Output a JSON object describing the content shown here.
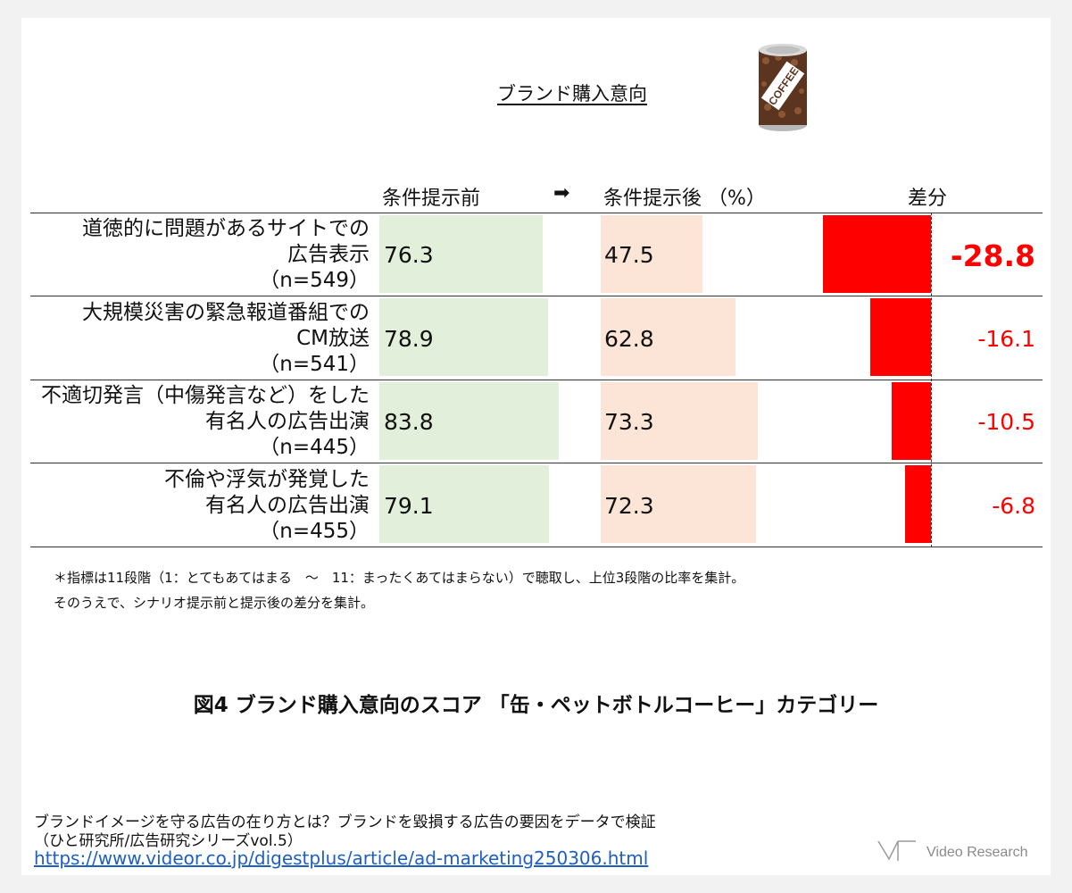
{
  "chart_data": {
    "type": "bar",
    "title": "ブランド購入意向",
    "headers": {
      "before": "条件提示前",
      "arrow": "➡",
      "after": "条件提示後 （%）",
      "diff": "差分"
    },
    "categories": [
      {
        "line1": "道徳的に問題があるサイトでの",
        "line2": "広告表示",
        "line3": "（n=549）"
      },
      {
        "line1": "大規模災害の緊急報道番組での",
        "line2": "CM放送",
        "line3": "（n=541）"
      },
      {
        "line1": "不適切発言（中傷発言など）をした",
        "line2": "有名人の広告出演",
        "line3": "（n=445）"
      },
      {
        "line1": "不倫や浮気が発覚した",
        "line2": "有名人の広告出演",
        "line3": "（n=455）"
      }
    ],
    "series": [
      {
        "name": "条件提示前",
        "values": [
          76.3,
          78.9,
          83.8,
          79.1
        ]
      },
      {
        "name": "条件提示後",
        "values": [
          47.5,
          62.8,
          73.3,
          72.3
        ]
      },
      {
        "name": "差分",
        "values": [
          -28.8,
          -16.1,
          -10.5,
          -6.8
        ]
      }
    ],
    "value_labels": {
      "before": [
        "76.3",
        "78.9",
        "83.8",
        "79.1"
      ],
      "after": [
        "47.5",
        "62.8",
        "73.3",
        "72.3"
      ],
      "diff": [
        "-28.8",
        "-16.1",
        "-10.5",
        "-6.8"
      ]
    },
    "colors": {
      "before": "#e2efda",
      "after": "#fce4d6",
      "diff": "#ff0000"
    }
  },
  "icon": {
    "name": "coffee-can-icon",
    "label": "COFFEE"
  },
  "notes": [
    "＊指標は11段階（1：とてもあてはまる　～　11：まったくあてはまらない）で聴取し、上位3段階の比率を集計。",
    "そのうえで、シナリオ提示前と提示後の差分を集計。"
  ],
  "caption": "図4 ブランド購入意向のスコア 「缶・ペットボトルコーヒー」カテゴリー",
  "source": {
    "line1": "ブランドイメージを守る広告の在り方とは？ブランドを毀損する広告の要因をデータで検証",
    "line2": "（ひと研究所/広告研究シリーズvol.5）",
    "url": "https://www.videor.co.jp/digestplus/article/ad-marketing250306.html"
  },
  "logo": {
    "text": "Video Research"
  }
}
